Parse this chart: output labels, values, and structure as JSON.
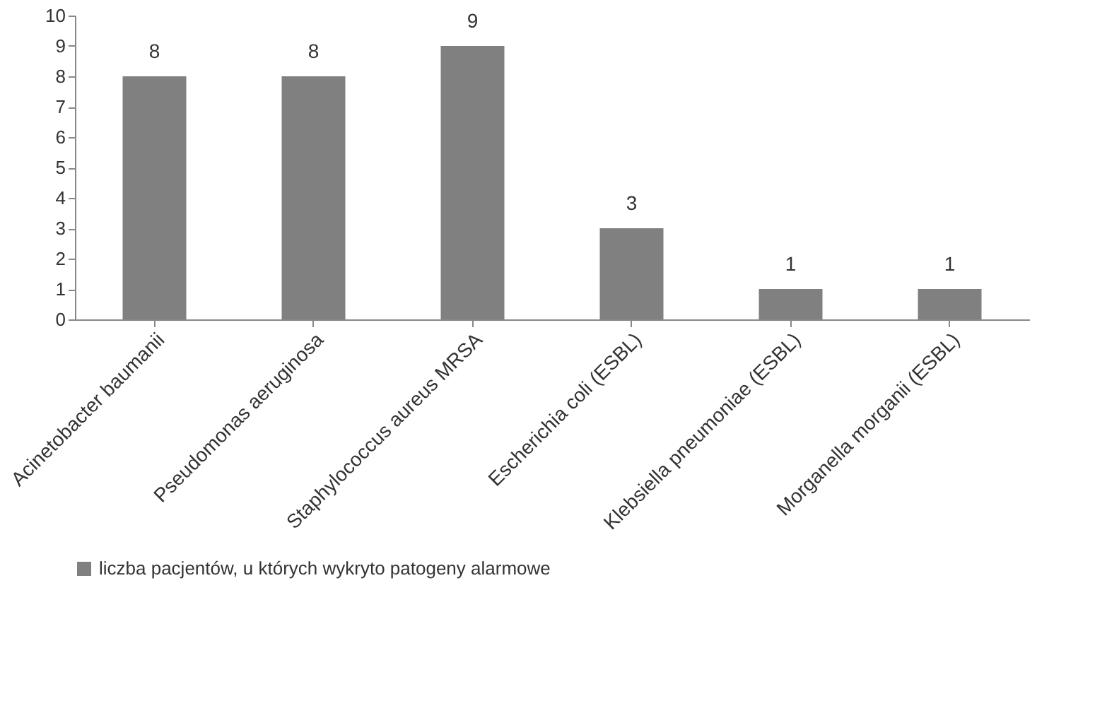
{
  "chart_data": {
    "type": "bar",
    "categories": [
      "Acinetobacter baumanii",
      "Pseudomonas aeruginosa",
      "Staphylococcus aureus MRSA",
      "Escherichia coli (ESBL)",
      "Klebsiella pneumoniae (ESBL)",
      "Morganella morganii (ESBL)"
    ],
    "series": [
      {
        "name": "liczba pacjentów, u których wykryto patogeny alarmowe",
        "color": "#808080",
        "values": [
          8,
          8,
          9,
          3,
          1,
          1
        ]
      }
    ],
    "ylim": [
      0,
      10
    ],
    "yticks": [
      0,
      1,
      2,
      3,
      4,
      5,
      6,
      7,
      8,
      9,
      10
    ],
    "grid": false,
    "data_labels": true,
    "legend": "bottom"
  }
}
